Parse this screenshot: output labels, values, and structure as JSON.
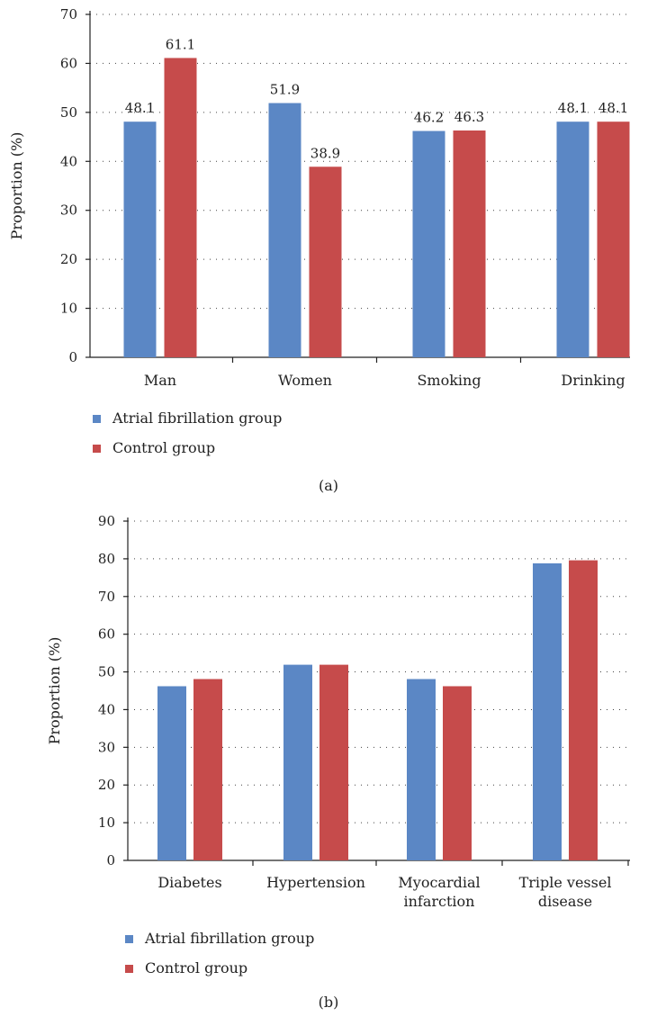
{
  "colors": {
    "series_a": "#5b87c5",
    "series_b": "#c64b4b"
  },
  "chart_data": [
    {
      "type": "bar",
      "panel_label": "(a)",
      "ylabel": "Proportion (%)",
      "xlabel": "",
      "ylim": [
        0,
        70
      ],
      "yticks": [
        0,
        10,
        20,
        30,
        40,
        50,
        60,
        70
      ],
      "grid": true,
      "legend_position": "bottom-left",
      "categories": [
        [
          "Man"
        ],
        [
          "Women"
        ],
        [
          "Smoking"
        ],
        [
          "Drinking"
        ]
      ],
      "series": [
        {
          "name": "Atrial fibrillation group",
          "values": [
            48.1,
            51.9,
            46.2,
            48.1
          ]
        },
        {
          "name": "Control group",
          "values": [
            61.1,
            38.9,
            46.3,
            48.1
          ]
        }
      ],
      "data_labels": [
        [
          "48.1",
          "51.9",
          "46.2",
          "48.1"
        ],
        [
          "61.1",
          "38.9",
          "46.3",
          "48.1"
        ]
      ]
    },
    {
      "type": "bar",
      "panel_label": "(b)",
      "ylabel": "Proportion (%)",
      "xlabel": "",
      "ylim": [
        0,
        90
      ],
      "yticks": [
        0,
        10,
        20,
        30,
        40,
        50,
        60,
        70,
        80,
        90
      ],
      "grid": true,
      "legend_position": "bottom-left",
      "categories": [
        [
          "Diabetes"
        ],
        [
          "Hypertension"
        ],
        [
          "Myocardial",
          "infarction"
        ],
        [
          "Triple vessel",
          "disease"
        ]
      ],
      "series": [
        {
          "name": "Atrial fibrillation group",
          "values": [
            46.2,
            51.9,
            48.1,
            78.8
          ]
        },
        {
          "name": "Control group",
          "values": [
            48.1,
            51.9,
            46.2,
            79.6
          ]
        }
      ],
      "data_labels": null
    }
  ]
}
